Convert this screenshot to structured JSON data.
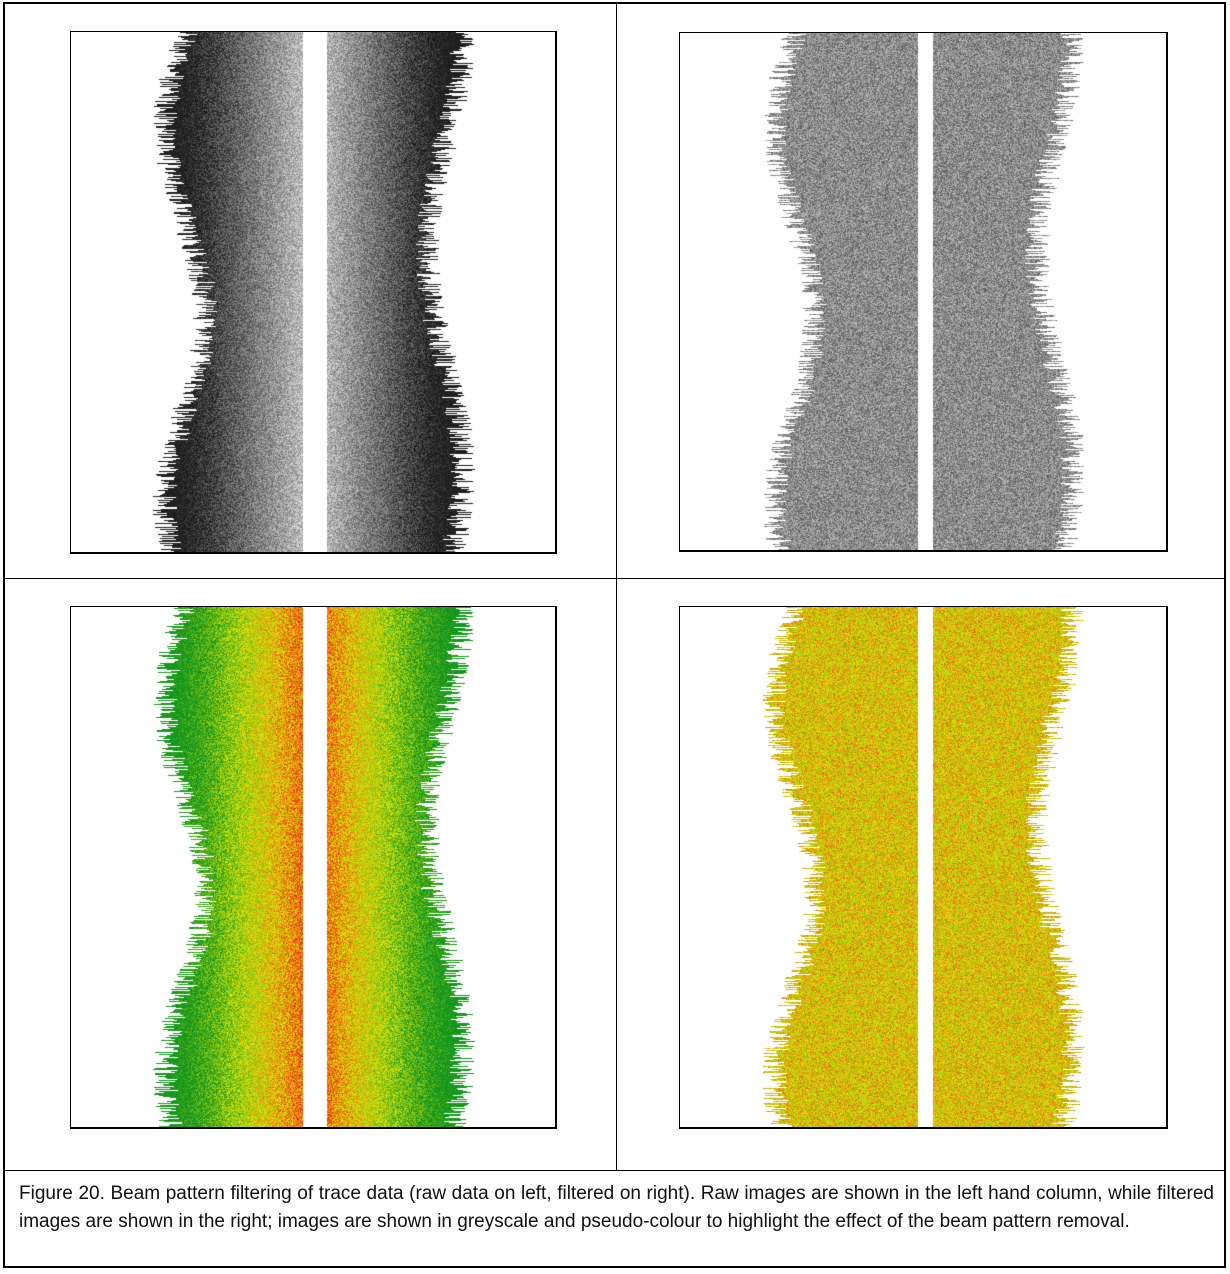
{
  "figure": {
    "caption": "Figure 20.  Beam pattern filtering of trace data (raw data on left, filtered on right).  Raw images are shown in the left hand column, while filtered images are shown in the right; images are shown in greyscale and pseudo-colour to highlight the effect of the beam pattern removal."
  },
  "panels": [
    {
      "id": "raw-greyscale",
      "mode": "grey",
      "filtered": false
    },
    {
      "id": "filtered-greyscale",
      "mode": "grey",
      "filtered": true
    },
    {
      "id": "raw-pseudocolour",
      "mode": "color",
      "filtered": false
    },
    {
      "id": "filtered-pseudocolour",
      "mode": "color",
      "filtered": true
    }
  ],
  "colors": {
    "low": "#22b14c",
    "mid": "#c8e600",
    "high": "#e81010",
    "grey_dark": "#1e1e1e",
    "grey_light": "#f0f0f0"
  }
}
